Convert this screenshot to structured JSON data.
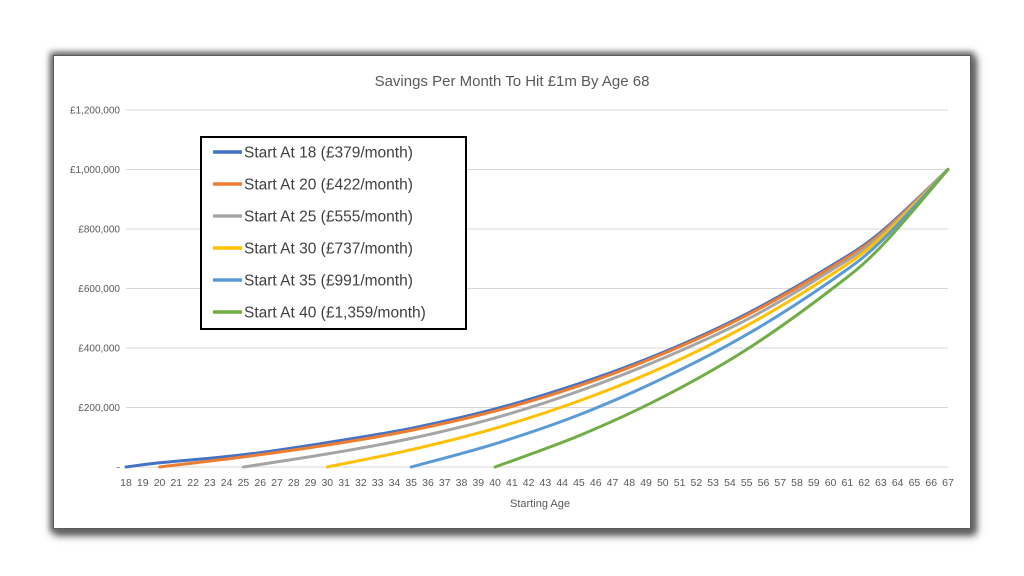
{
  "chart_data": {
    "type": "line",
    "title": "Savings Per Month To Hit £1m By Age 68",
    "xlabel": "Starting Age",
    "ylabel": "",
    "ylim": [
      0,
      1200000
    ],
    "xlim": [
      18,
      67
    ],
    "y_ticks": [
      "-",
      "£200,000",
      "£400,000",
      "£600,000",
      "£800,000",
      "£1,000,000",
      "£1,200,000"
    ],
    "x_ticks": [
      "18",
      "19",
      "20",
      "21",
      "22",
      "23",
      "24",
      "25",
      "26",
      "27",
      "28",
      "29",
      "30",
      "31",
      "32",
      "33",
      "34",
      "35",
      "36",
      "37",
      "38",
      "39",
      "40",
      "41",
      "42",
      "43",
      "44",
      "45",
      "46",
      "47",
      "48",
      "49",
      "50",
      "51",
      "52",
      "53",
      "54",
      "55",
      "56",
      "57",
      "58",
      "59",
      "60",
      "61",
      "62",
      "63",
      "64",
      "65",
      "66",
      "67"
    ],
    "grid": true,
    "legend_position": "top-left",
    "series": [
      {
        "name": "Start At 18 (£379/month)",
        "start": 18,
        "color": "#4472C4",
        "points": [
          [
            18,
            0
          ],
          [
            20,
            14000
          ],
          [
            25,
            41000
          ],
          [
            30,
            82000
          ],
          [
            35,
            130000
          ],
          [
            40,
            195000
          ],
          [
            45,
            280000
          ],
          [
            50,
            385000
          ],
          [
            55,
            515000
          ],
          [
            60,
            675000
          ],
          [
            63,
            790000
          ],
          [
            67,
            1000000
          ]
        ]
      },
      {
        "name": "Start At 20 (£422/month)",
        "start": 20,
        "color": "#ED7D31",
        "points": [
          [
            20,
            0
          ],
          [
            25,
            34000
          ],
          [
            30,
            74000
          ],
          [
            35,
            123000
          ],
          [
            40,
            188000
          ],
          [
            45,
            273000
          ],
          [
            50,
            380000
          ],
          [
            55,
            510000
          ],
          [
            60,
            670000
          ],
          [
            63,
            785000
          ],
          [
            67,
            1000000
          ]
        ]
      },
      {
        "name": "Start At 25 (£555/month)",
        "start": 25,
        "color": "#A5A5A5",
        "points": [
          [
            25,
            0
          ],
          [
            30,
            44000
          ],
          [
            35,
            96000
          ],
          [
            40,
            165000
          ],
          [
            45,
            255000
          ],
          [
            50,
            365000
          ],
          [
            55,
            495000
          ],
          [
            60,
            660000
          ],
          [
            63,
            778000
          ],
          [
            67,
            1000000
          ]
        ]
      },
      {
        "name": "Start At 30 (£737/month)",
        "start": 30,
        "color": "#FFC000",
        "points": [
          [
            30,
            0
          ],
          [
            35,
            58000
          ],
          [
            40,
            130000
          ],
          [
            45,
            222000
          ],
          [
            50,
            335000
          ],
          [
            55,
            475000
          ],
          [
            60,
            645000
          ],
          [
            63,
            770000
          ],
          [
            67,
            1000000
          ]
        ]
      },
      {
        "name": "Start At 35 (£991/month)",
        "start": 35,
        "color": "#5B9BD5",
        "points": [
          [
            35,
            0
          ],
          [
            40,
            78000
          ],
          [
            45,
            175000
          ],
          [
            50,
            298000
          ],
          [
            55,
            445000
          ],
          [
            60,
            625000
          ],
          [
            63,
            758000
          ],
          [
            67,
            1000000
          ]
        ]
      },
      {
        "name": "Start At 40 (£1,359/month)",
        "start": 40,
        "color": "#70AD47",
        "points": [
          [
            40,
            0
          ],
          [
            45,
            105000
          ],
          [
            50,
            235000
          ],
          [
            55,
            395000
          ],
          [
            60,
            595000
          ],
          [
            63,
            740000
          ],
          [
            67,
            1000000
          ]
        ]
      }
    ]
  }
}
